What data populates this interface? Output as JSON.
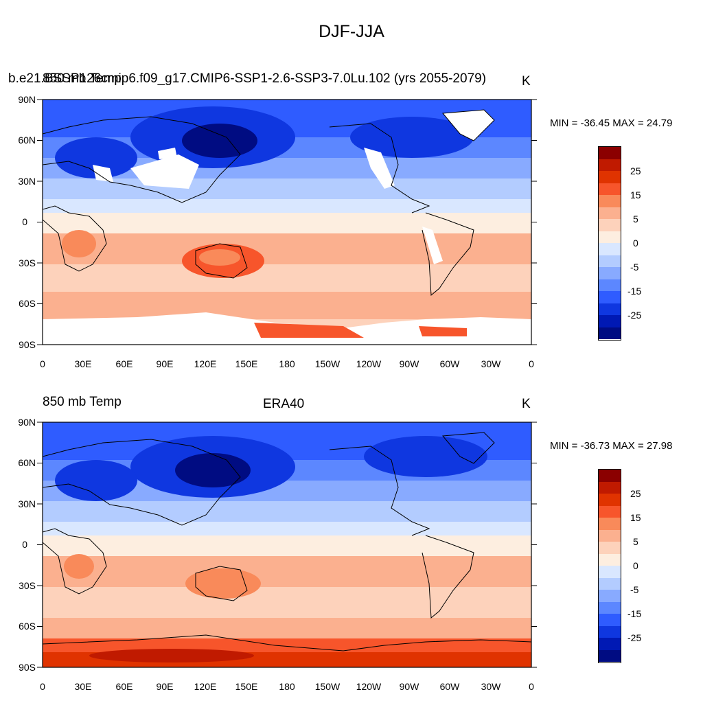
{
  "title": "DJF-JJA",
  "units_left": "850 mb Temp",
  "units_right": "K",
  "lat_labels": [
    "90N",
    "60N",
    "30N",
    "0",
    "30S",
    "60S",
    "90S"
  ],
  "lon_labels": [
    "0",
    "30E",
    "60E",
    "90E",
    "120E",
    "150E",
    "180",
    "150W",
    "120W",
    "90W",
    "60W",
    "30W",
    "0"
  ],
  "colorbar": {
    "tick_labels": [
      "25",
      "15",
      "5",
      "0",
      "-5",
      "-15",
      "-25"
    ],
    "colors": [
      "#8b0000",
      "#c01a00",
      "#e03300",
      "#f7552b",
      "#f98a5a",
      "#fbb08f",
      "#fdd2bb",
      "#fdeee0",
      "#d9e7ff",
      "#b3ccff",
      "#88aaff",
      "#5c87ff",
      "#2f5cff",
      "#0f37e0",
      "#0019b4",
      "#000c82"
    ]
  },
  "panels": [
    {
      "left_label": "850 mb Temp",
      "center_label": "b.e21.BSSP126cmip6.f09_g17.CMIP6-SSP1-2.6-SSP3-7.0Lu.102 (yrs 2055-2079)",
      "right_label": "K",
      "minmax": "MIN = -36.45 MAX =  24.79"
    },
    {
      "left_label": "850 mb Temp",
      "center_label": "ERA40",
      "right_label": "K",
      "minmax": "MIN = -36.73 MAX =  27.98"
    }
  ]
}
